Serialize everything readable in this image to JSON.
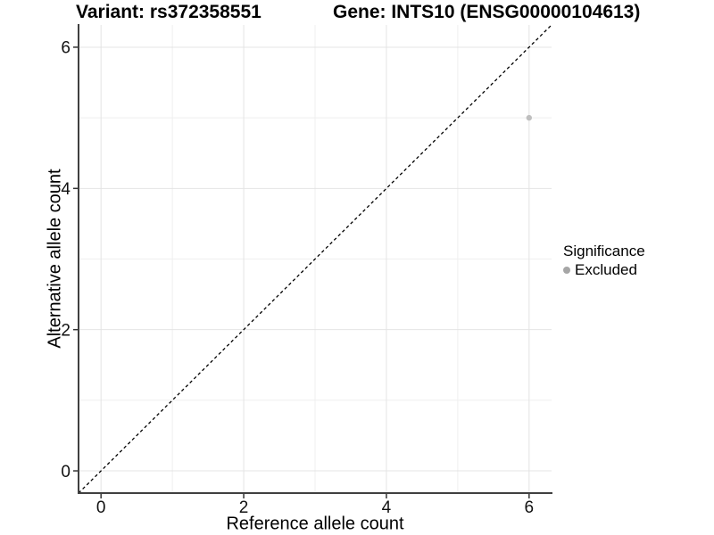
{
  "header": {
    "variant_title": "Variant: rs372358551",
    "gene_title": "Gene: INTS10 (ENSG00000104613)"
  },
  "chart_data": {
    "type": "scatter",
    "xlabel": "Reference allele count",
    "ylabel": "Alternative allele count",
    "xlim": [
      -0.315,
      6.315
    ],
    "ylim": [
      -0.315,
      6.315
    ],
    "x_ticks": [
      0,
      2,
      4,
      6
    ],
    "y_ticks": [
      0,
      2,
      4,
      6
    ],
    "x_minor": [
      1,
      3,
      5
    ],
    "y_minor": [
      1,
      3,
      5
    ],
    "grid": "major+minor",
    "series": [
      {
        "name": "Excluded",
        "color": "#bfbfbf",
        "points": [
          [
            6,
            5
          ]
        ]
      }
    ],
    "reference_line": {
      "slope": 1,
      "intercept": 0,
      "style": "dashed",
      "color": "#000000"
    },
    "legend": {
      "position": "right",
      "title": "Significance",
      "items": [
        {
          "label": "Excluded",
          "marker": "circle",
          "color": "#a6a6a6"
        }
      ]
    }
  },
  "style": {
    "background": "#ffffff",
    "axis_line_color": "#404040",
    "tick_color": "#333333",
    "tick_label_color": "#111111",
    "grid_major_color": "#e4e4e4",
    "grid_minor_color": "#efefef",
    "text_color": "#000000"
  }
}
